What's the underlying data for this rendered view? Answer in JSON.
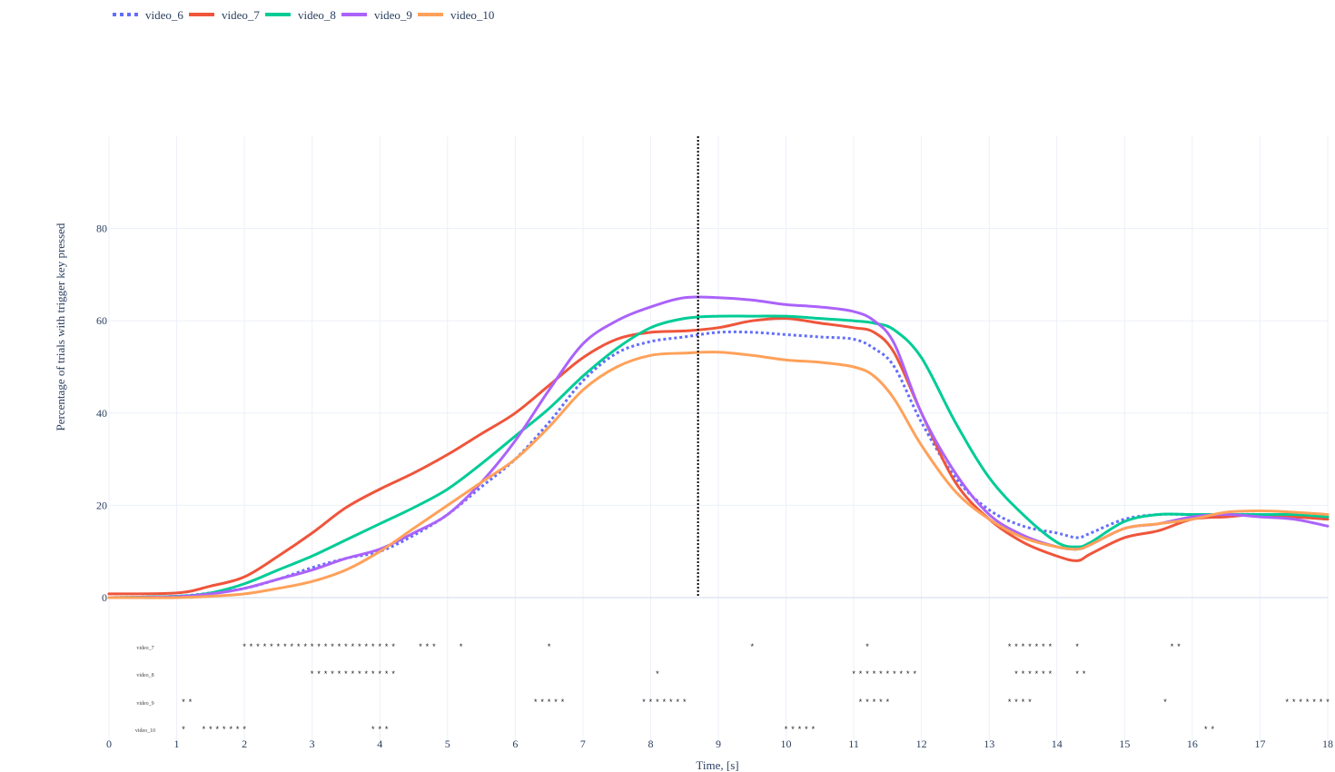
{
  "chart_data": {
    "type": "line",
    "xlabel": "Time, [s]",
    "ylabel": "Percentage of trials with trigger key pressed",
    "xlim": [
      0,
      18
    ],
    "ylim": [
      -31.5,
      100
    ],
    "x_ticks": [
      0,
      1,
      2,
      3,
      4,
      5,
      6,
      7,
      8,
      9,
      10,
      11,
      12,
      13,
      14,
      15,
      16,
      17,
      18
    ],
    "y_ticks": [
      0,
      20,
      40,
      60,
      80
    ],
    "grid": true,
    "legend_position": "top-left",
    "event_line_x": 8.7,
    "series": [
      {
        "name": "video_6",
        "color": "#636efa",
        "dash": "dot",
        "x": [
          0,
          1,
          1.5,
          2,
          2.5,
          3,
          3.5,
          4,
          4.5,
          5,
          5.5,
          6,
          6.5,
          7,
          7.5,
          8,
          8.5,
          9,
          9.5,
          10,
          10.5,
          11,
          11.3,
          11.6,
          12,
          12.5,
          13,
          13.5,
          14,
          14.3,
          14.5,
          15,
          15.5,
          16,
          16.5,
          17,
          17.5,
          18
        ],
        "y": [
          0,
          0.3,
          1,
          2,
          4,
          6.5,
          8.5,
          10,
          13.5,
          18,
          24,
          30,
          38,
          47,
          53,
          55.5,
          56.5,
          57.5,
          57.5,
          57,
          56.5,
          56,
          54,
          50,
          38,
          26,
          19,
          15.5,
          14,
          13,
          14,
          17,
          18,
          18,
          18,
          18,
          17.5,
          17
        ]
      },
      {
        "name": "video_7",
        "color": "#ef553b",
        "dash": "solid",
        "x": [
          0,
          1,
          1.5,
          2,
          2.5,
          3,
          3.5,
          4,
          4.5,
          5,
          5.5,
          6,
          6.5,
          7,
          7.5,
          8,
          8.5,
          9,
          9.5,
          10,
          10.5,
          11,
          11.3,
          11.6,
          12,
          12.5,
          13,
          13.5,
          14,
          14.3,
          14.5,
          15,
          15.5,
          16,
          16.5,
          17,
          17.5,
          18
        ],
        "y": [
          0.8,
          1,
          2.5,
          4.5,
          9,
          14,
          19.5,
          23.5,
          27,
          31,
          35.5,
          40,
          46,
          52,
          56,
          57.5,
          57.8,
          58.5,
          60,
          60.5,
          59.5,
          58.5,
          57.5,
          53,
          40,
          25,
          17,
          12,
          9,
          8,
          9.5,
          13,
          14.5,
          17,
          17.5,
          18,
          17.5,
          17
        ]
      },
      {
        "name": "video_8",
        "color": "#00cc96",
        "dash": "solid",
        "x": [
          0,
          1,
          1.5,
          2,
          2.5,
          3,
          3.5,
          4,
          4.5,
          5,
          5.5,
          6,
          6.5,
          7,
          7.5,
          8,
          8.5,
          9,
          9.5,
          10,
          10.5,
          11,
          11.3,
          11.6,
          12,
          12.5,
          13,
          13.5,
          14,
          14.3,
          14.5,
          15,
          15.5,
          16,
          16.5,
          17,
          17.5,
          18
        ],
        "y": [
          0,
          0.3,
          1,
          3,
          6,
          9,
          12.5,
          16,
          19.5,
          23.5,
          29,
          35,
          41,
          48,
          54,
          58.5,
          60.5,
          61,
          61,
          61,
          60.5,
          60,
          59.5,
          58,
          52,
          38,
          26,
          18,
          12,
          11,
          12,
          16.5,
          18,
          18,
          18,
          18,
          18,
          17.5
        ]
      },
      {
        "name": "video_9",
        "color": "#ab63fa",
        "dash": "solid",
        "x": [
          0,
          1,
          1.5,
          2,
          2.5,
          3,
          3.5,
          4,
          4.5,
          5,
          5.5,
          6,
          6.5,
          7,
          7.5,
          8,
          8.5,
          9,
          9.5,
          10,
          10.5,
          11,
          11.3,
          11.6,
          12,
          12.5,
          13,
          13.5,
          14,
          14.3,
          14.5,
          15,
          15.5,
          16,
          16.5,
          17,
          17.5,
          18
        ],
        "y": [
          0,
          0.2,
          0.8,
          2,
          4,
          6,
          8.5,
          10.5,
          14,
          18,
          25,
          34,
          45,
          55,
          60,
          63,
          65,
          65,
          64.5,
          63.5,
          63,
          62,
          60,
          55,
          40,
          27,
          18,
          13.5,
          11,
          10.5,
          11.5,
          15,
          16,
          17.5,
          18,
          17.5,
          17,
          15.5
        ]
      },
      {
        "name": "video_10",
        "color": "#ffa15a",
        "dash": "solid",
        "x": [
          0,
          1,
          1.5,
          2,
          2.5,
          3,
          3.5,
          4,
          4.5,
          5,
          5.5,
          6,
          6.5,
          7,
          7.5,
          8,
          8.5,
          9,
          9.5,
          10,
          10.5,
          11,
          11.3,
          11.6,
          12,
          12.5,
          13,
          13.5,
          14,
          14.3,
          14.5,
          15,
          15.5,
          16,
          16.5,
          17,
          17.5,
          18
        ],
        "y": [
          0,
          0,
          0.3,
          0.8,
          2,
          3.5,
          6,
          10,
          15,
          20,
          25,
          30,
          37,
          45,
          50,
          52.5,
          53,
          53.2,
          52.5,
          51.5,
          51,
          50,
          48,
          43,
          33,
          23,
          17,
          13,
          11,
          10.5,
          11.5,
          15,
          16,
          17,
          18.5,
          18.8,
          18.5,
          18
        ]
      }
    ],
    "significance": [
      {
        "label": "video_7",
        "points": [
          2,
          2.1,
          2.2,
          2.3,
          2.4,
          2.5,
          2.6,
          2.7,
          2.8,
          2.9,
          3,
          3.1,
          3.2,
          3.3,
          3.4,
          3.5,
          3.6,
          3.7,
          3.8,
          3.9,
          4,
          4.1,
          4.2,
          4.6,
          4.7,
          4.8,
          5.2,
          6.5,
          9.5,
          11.2,
          13.3,
          13.4,
          13.5,
          13.6,
          13.7,
          13.8,
          13.9,
          14.3,
          15.7,
          15.8
        ]
      },
      {
        "label": "video_8",
        "points": [
          3,
          3.1,
          3.2,
          3.3,
          3.4,
          3.5,
          3.6,
          3.7,
          3.8,
          3.9,
          4,
          4.1,
          4.2,
          8.1,
          11,
          11.1,
          11.2,
          11.3,
          11.4,
          11.5,
          11.6,
          11.7,
          11.8,
          11.9,
          13.4,
          13.5,
          13.6,
          13.7,
          13.8,
          13.9,
          14.3,
          14.4
        ]
      },
      {
        "label": "video_9",
        "points": [
          1.1,
          1.2,
          6.3,
          6.4,
          6.5,
          6.6,
          6.7,
          7.9,
          8,
          8.1,
          8.2,
          8.3,
          8.4,
          8.5,
          11.1,
          11.2,
          11.3,
          11.4,
          11.5,
          13.3,
          13.4,
          13.5,
          13.6,
          15.6,
          17.4,
          17.5,
          17.6,
          17.7,
          17.8,
          17.9,
          18
        ]
      },
      {
        "label": "video_10",
        "points": [
          1.1,
          1.4,
          1.5,
          1.6,
          1.7,
          1.8,
          1.9,
          2,
          3.9,
          4,
          4.1,
          10,
          10.1,
          10.2,
          10.3,
          10.4,
          16.2,
          16.3
        ]
      }
    ]
  }
}
